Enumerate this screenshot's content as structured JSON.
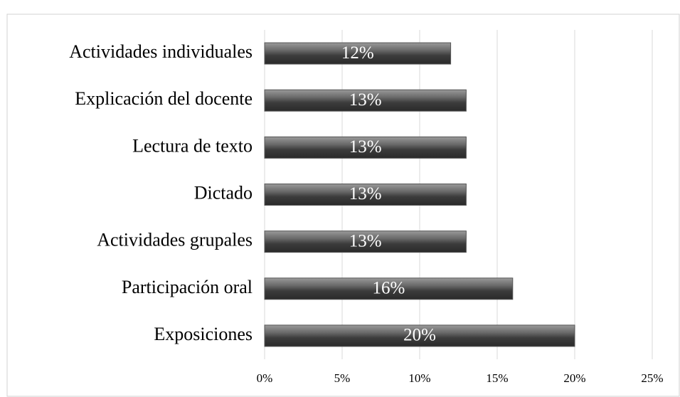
{
  "chart_data": {
    "type": "bar",
    "orientation": "horizontal",
    "categories": [
      "Actividades individuales",
      "Explicación del docente",
      "Lectura de texto",
      "Dictado",
      "Actividades grupales",
      "Participación oral",
      "Exposiciones"
    ],
    "values": [
      12,
      13,
      13,
      13,
      13,
      16,
      20
    ],
    "value_labels": [
      "12%",
      "13%",
      "13%",
      "13%",
      "13%",
      "16%",
      "20%"
    ],
    "color": "#555555",
    "xlim": [
      0,
      25
    ],
    "xticks": [
      {
        "value": 0,
        "label": "0%"
      },
      {
        "value": 5,
        "label": "5%"
      },
      {
        "value": 10,
        "label": "10%"
      },
      {
        "value": 15,
        "label": "15%"
      },
      {
        "value": 20,
        "label": "20%"
      },
      {
        "value": 25,
        "label": "25%"
      }
    ],
    "grid": true
  }
}
